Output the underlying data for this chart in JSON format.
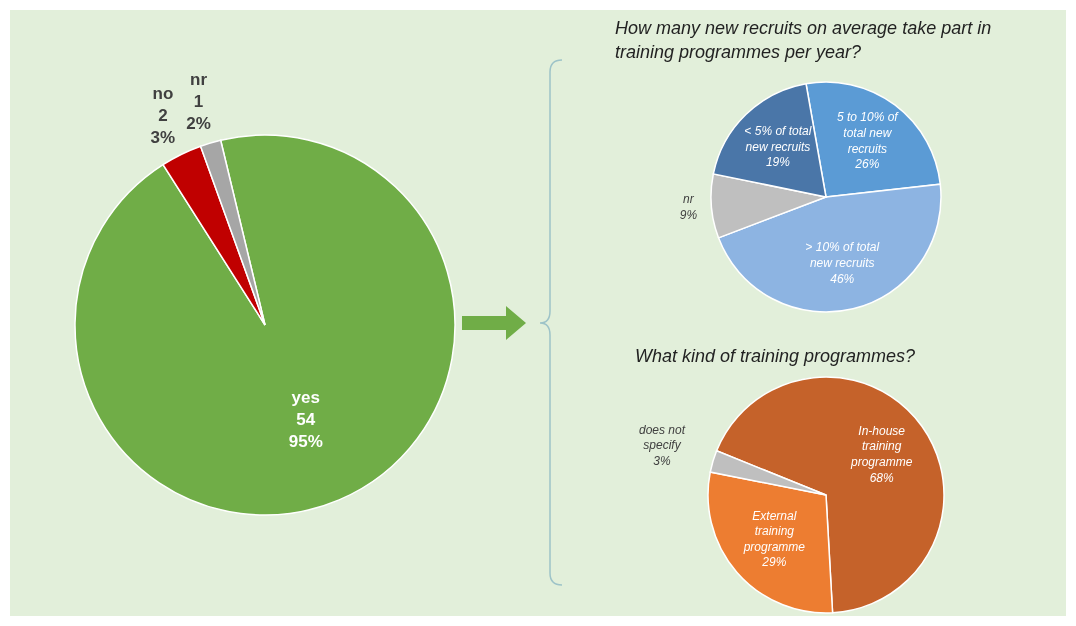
{
  "chart_data": [
    {
      "type": "pie",
      "categories": [
        "yes",
        "no",
        "nr"
      ],
      "values": [
        54,
        2,
        1
      ],
      "colors": [
        "#70ad47",
        "#c00000",
        "#a6a6a6"
      ],
      "value_labels": [
        "54 95%",
        "2 3%",
        "1 2%"
      ]
    },
    {
      "type": "pie",
      "title": "How many new recruits on average take part in training programmes per year?",
      "categories": [
        "5 to 10% of total new recruits",
        "> 10% of total new recruits",
        "nr",
        "< 5% of total new recruits"
      ],
      "values": [
        26,
        46,
        9,
        19
      ],
      "colors": [
        "#5b9bd5",
        "#8db4e2",
        "#bfbfbf",
        "#4a76a8"
      ],
      "value_labels": [
        "26%",
        "46%",
        "9%",
        "19%"
      ]
    },
    {
      "type": "pie",
      "title": "What kind of training programmes?",
      "categories": [
        "In-house training programme",
        "External training programme",
        "does not specify"
      ],
      "values": [
        68,
        29,
        3
      ],
      "colors": [
        "#c5622a",
        "#ed7d31",
        "#bfbfbf"
      ],
      "value_labels": [
        "68%",
        "29%",
        "3%"
      ]
    }
  ]
}
